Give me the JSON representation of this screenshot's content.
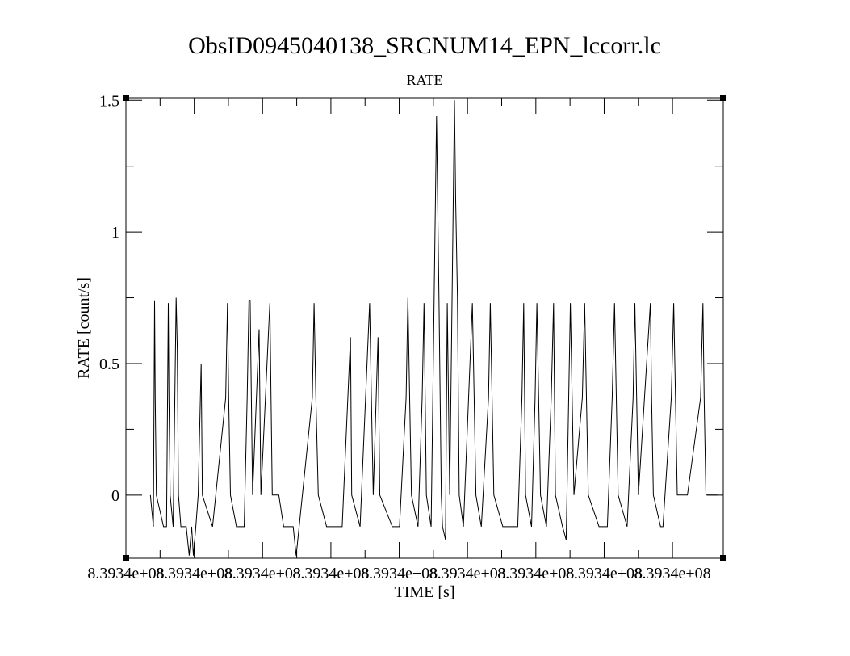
{
  "chart_data": {
    "type": "line",
    "title": "ObsID0945040138_SRCNUM14_EPN_lccorr.lc",
    "subtitle": "RATE",
    "xlabel": "TIME [s]",
    "ylabel": "RATE [count/s]",
    "xlim": [
      0,
      1
    ],
    "ylim": [
      -0.24,
      1.51
    ],
    "x_tick_labels": [
      "8.3934e+08",
      "8.3934e+08",
      "8.3934e+08",
      "8.3934e+08",
      "8.3934e+08",
      "8.3934e+08",
      "8.3934e+08",
      "8.3934e+08",
      "8.3934e+08"
    ],
    "y_ticks": [
      {
        "value": 0,
        "label": "0"
      },
      {
        "value": 0.5,
        "label": "0.5"
      },
      {
        "value": 1,
        "label": "1"
      },
      {
        "value": 1.5,
        "label": "1.5"
      }
    ],
    "grid": false,
    "series": [
      {
        "values": [
          [
            0.041,
            0.0
          ],
          [
            0.046,
            -0.12
          ],
          [
            0.048,
            0.74
          ],
          [
            0.049,
            0.37
          ],
          [
            0.051,
            0.0
          ],
          [
            0.063,
            -0.12
          ],
          [
            0.068,
            -0.12
          ],
          [
            0.071,
            0.73
          ],
          [
            0.072,
            0.37
          ],
          [
            0.074,
            0.0
          ],
          [
            0.079,
            -0.12
          ],
          [
            0.084,
            0.75
          ],
          [
            0.086,
            0.56
          ],
          [
            0.088,
            0.0
          ],
          [
            0.092,
            -0.12
          ],
          [
            0.097,
            -0.12
          ],
          [
            0.101,
            -0.12
          ],
          [
            0.106,
            -0.23
          ],
          [
            0.11,
            -0.12
          ],
          [
            0.113,
            -0.23
          ],
          [
            0.117,
            -0.12
          ],
          [
            0.121,
            0.0
          ],
          [
            0.126,
            0.5
          ],
          [
            0.128,
            0.0
          ],
          [
            0.145,
            -0.12
          ],
          [
            0.167,
            0.37
          ],
          [
            0.17,
            0.73
          ],
          [
            0.172,
            0.37
          ],
          [
            0.175,
            0.0
          ],
          [
            0.185,
            -0.12
          ],
          [
            0.198,
            -0.12
          ],
          [
            0.203,
            0.37
          ],
          [
            0.206,
            0.74
          ],
          [
            0.208,
            0.74
          ],
          [
            0.21,
            0.37
          ],
          [
            0.212,
            0.0
          ],
          [
            0.223,
            0.63
          ],
          [
            0.226,
            0.0
          ],
          [
            0.241,
            0.73
          ],
          [
            0.245,
            0.0
          ],
          [
            0.256,
            0.0
          ],
          [
            0.264,
            -0.12
          ],
          [
            0.28,
            -0.12
          ],
          [
            0.285,
            -0.23
          ],
          [
            0.29,
            -0.12
          ],
          [
            0.312,
            0.37
          ],
          [
            0.315,
            0.73
          ],
          [
            0.318,
            0.37
          ],
          [
            0.322,
            0.0
          ],
          [
            0.336,
            -0.12
          ],
          [
            0.341,
            -0.12
          ],
          [
            0.362,
            -0.12
          ],
          [
            0.376,
            0.6
          ],
          [
            0.378,
            0.0
          ],
          [
            0.392,
            -0.12
          ],
          [
            0.408,
            0.73
          ],
          [
            0.411,
            0.37
          ],
          [
            0.414,
            0.0
          ],
          [
            0.422,
            0.6
          ],
          [
            0.425,
            0.0
          ],
          [
            0.446,
            -0.12
          ],
          [
            0.458,
            -0.12
          ],
          [
            0.469,
            0.37
          ],
          [
            0.472,
            0.75
          ],
          [
            0.475,
            0.37
          ],
          [
            0.478,
            0.0
          ],
          [
            0.489,
            -0.12
          ],
          [
            0.496,
            0.37
          ],
          [
            0.499,
            0.73
          ],
          [
            0.503,
            0.0
          ],
          [
            0.511,
            -0.12
          ],
          [
            0.52,
            1.44
          ],
          [
            0.524,
            0.75
          ],
          [
            0.528,
            0.0
          ],
          [
            0.53,
            -0.12
          ],
          [
            0.535,
            -0.17
          ],
          [
            0.538,
            0.73
          ],
          [
            0.542,
            0.0
          ],
          [
            0.55,
            1.5
          ],
          [
            0.552,
            1.12
          ],
          [
            0.555,
            0.75
          ],
          [
            0.558,
            0.0
          ],
          [
            0.565,
            -0.12
          ],
          [
            0.58,
            0.73
          ],
          [
            0.583,
            0.37
          ],
          [
            0.586,
            0.0
          ],
          [
            0.595,
            -0.12
          ],
          [
            0.607,
            0.37
          ],
          [
            0.61,
            0.73
          ],
          [
            0.613,
            0.37
          ],
          [
            0.616,
            0.0
          ],
          [
            0.631,
            -0.12
          ],
          [
            0.644,
            -0.12
          ],
          [
            0.65,
            -0.12
          ],
          [
            0.656,
            -0.12
          ],
          [
            0.663,
            0.37
          ],
          [
            0.666,
            0.73
          ],
          [
            0.669,
            0.0
          ],
          [
            0.679,
            -0.12
          ],
          [
            0.685,
            0.37
          ],
          [
            0.688,
            0.73
          ],
          [
            0.691,
            0.37
          ],
          [
            0.694,
            0.0
          ],
          [
            0.704,
            -0.12
          ],
          [
            0.712,
            0.37
          ],
          [
            0.716,
            0.73
          ],
          [
            0.719,
            0.0
          ],
          [
            0.731,
            -0.12
          ],
          [
            0.737,
            -0.17
          ],
          [
            0.744,
            0.73
          ],
          [
            0.747,
            0.37
          ],
          [
            0.75,
            0.0
          ],
          [
            0.764,
            0.37
          ],
          [
            0.768,
            0.73
          ],
          [
            0.771,
            0.37
          ],
          [
            0.774,
            0.0
          ],
          [
            0.792,
            -0.12
          ],
          [
            0.806,
            -0.12
          ],
          [
            0.814,
            0.37
          ],
          [
            0.818,
            0.73
          ],
          [
            0.821,
            0.37
          ],
          [
            0.824,
            0.0
          ],
          [
            0.839,
            -0.12
          ],
          [
            0.849,
            0.37
          ],
          [
            0.852,
            0.73
          ],
          [
            0.855,
            0.37
          ],
          [
            0.858,
            0.0
          ],
          [
            0.878,
            0.73
          ],
          [
            0.88,
            0.37
          ],
          [
            0.883,
            0.0
          ],
          [
            0.895,
            -0.12
          ],
          [
            0.899,
            -0.12
          ],
          [
            0.913,
            0.37
          ],
          [
            0.917,
            0.73
          ],
          [
            0.92,
            0.37
          ],
          [
            0.923,
            0.0
          ],
          [
            0.94,
            0.0
          ],
          [
            0.962,
            0.37
          ],
          [
            0.966,
            0.73
          ],
          [
            0.968,
            0.37
          ],
          [
            0.971,
            0.0
          ],
          [
            0.98,
            0.0
          ],
          [
            0.99,
            0.0
          ]
        ]
      }
    ]
  }
}
